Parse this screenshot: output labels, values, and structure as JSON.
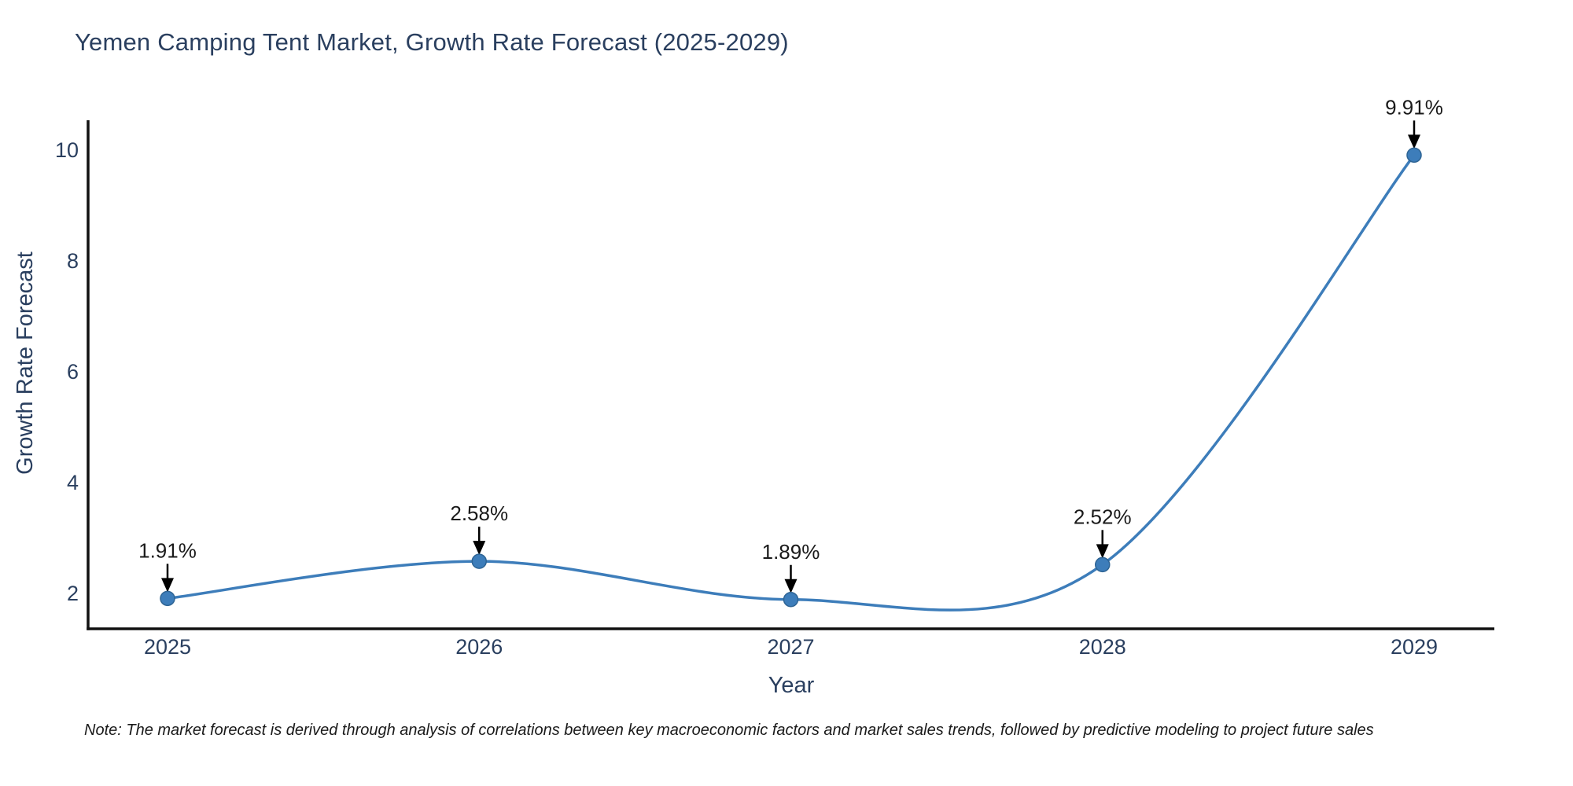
{
  "title": "Yemen Camping Tent Market, Growth Rate Forecast (2025-2029)",
  "note": "Note: The market forecast is derived through analysis of correlations between key macroeconomic factors and market sales trends, followed by predictive modeling to project future sales",
  "chart_data": {
    "type": "line",
    "title": "Yemen Camping Tent Market, Growth Rate Forecast (2025-2029)",
    "xlabel": "Year",
    "ylabel": "Growth Rate Forecast",
    "x": [
      2025,
      2026,
      2027,
      2028,
      2029
    ],
    "series": [
      {
        "name": "Growth Rate Forecast",
        "values": [
          1.91,
          2.58,
          1.89,
          2.52,
          9.91
        ]
      }
    ],
    "point_labels": [
      "1.91%",
      "2.58%",
      "1.89%",
      "2.52%",
      "9.91%"
    ],
    "xticks": [
      "2025",
      "2026",
      "2027",
      "2028",
      "2029"
    ],
    "yticks": [
      2,
      4,
      6,
      8,
      10
    ],
    "xlim": [
      2024.74,
      2029.26
    ],
    "ylim": [
      1.36,
      10.55
    ],
    "line_shape": "spline",
    "grid": false,
    "legend": "none",
    "markers": true,
    "annotations_arrows": true,
    "colors": {
      "line": "#3d7dba",
      "marker": "#3d7dba",
      "marker_edge": "#2e6494",
      "annotation_text": "#1a1a1a",
      "arrow": "#000000",
      "axis_line": "#111111",
      "title_text": "#2a3f5f",
      "tick_text": "#2a3f5f",
      "axis_label_text": "#2a3f5f",
      "note_text": "#1a1a1a",
      "background": "#ffffff"
    }
  }
}
